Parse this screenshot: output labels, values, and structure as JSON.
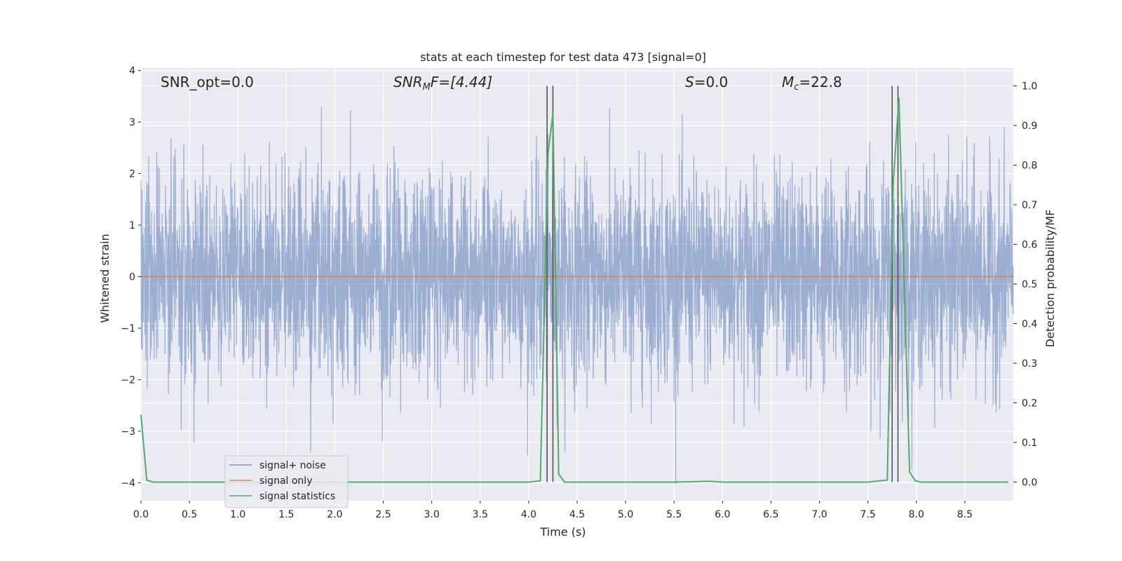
{
  "chart_data": {
    "type": "line",
    "title": "stats at each timestep for test data 473 [signal=0]",
    "xlabel": "Time (s)",
    "ylabel": "Whitened strain",
    "ylabel_right": "Detection probability/MF",
    "xlim": [
      0.0,
      9.0
    ],
    "ylim": [
      -4.35,
      4.05
    ],
    "ylim_right": [
      -0.047,
      1.045
    ],
    "x_ticks": [
      0.0,
      0.5,
      1.0,
      1.5,
      2.0,
      2.5,
      3.0,
      3.5,
      4.0,
      4.5,
      5.0,
      5.5,
      6.0,
      6.5,
      7.0,
      7.5,
      8.0,
      8.5
    ],
    "x_tick_labels": [
      "0.0",
      "0.5",
      "1.0",
      "1.5",
      "2.0",
      "2.5",
      "3.0",
      "3.5",
      "4.0",
      "4.5",
      "5.0",
      "5.5",
      "6.0",
      "6.5",
      "7.0",
      "7.5",
      "8.0",
      "8.5"
    ],
    "y_ticks": [
      4,
      3,
      2,
      1,
      0,
      -1,
      -2,
      -3,
      -4
    ],
    "y_tick_labels": [
      "4",
      "3",
      "2",
      "1",
      "0",
      "−1",
      "−2",
      "−3",
      "−4"
    ],
    "y2_ticks": [
      1.0,
      0.9,
      0.8,
      0.7,
      0.6,
      0.5,
      0.4,
      0.3,
      0.2,
      0.1,
      0.0
    ],
    "y2_tick_labels": [
      "1.0",
      "0.9",
      "0.8",
      "0.7",
      "0.6",
      "0.5",
      "0.4",
      "0.3",
      "0.2",
      "0.1",
      "0.0"
    ],
    "annotations": {
      "snr_opt": "SNR_opt=0.0",
      "snr_mf_prefix": "SNR",
      "snr_mf_sub": "M",
      "snr_mf_suffix": "F=[4.44]",
      "s_prefix": "S",
      "s_suffix": "=0.0",
      "mc_prefix": "M",
      "mc_sub": "c",
      "mc_suffix": "=22.8"
    },
    "legend": {
      "position": "lower-left",
      "entries": [
        "signal+ noise",
        "signal only",
        "signal statistics"
      ]
    },
    "grid": true,
    "background": "#eaeaf2",
    "series": [
      {
        "name": "signal+ noise",
        "kind": "noise",
        "color": "#4c72b0",
        "alpha": 0.5,
        "mean": 0.0,
        "std": 1.0,
        "samples": 4096,
        "x_range": [
          0.0,
          9.0
        ]
      },
      {
        "name": "signal only",
        "kind": "line",
        "color": "#dd8452",
        "x": [
          0.0,
          9.0
        ],
        "y": [
          0.0,
          0.0
        ]
      },
      {
        "name": "signal statistics",
        "kind": "line",
        "axis": "right",
        "color": "#55a868",
        "x": [
          0.0,
          0.06,
          0.12,
          0.5,
          1.0,
          1.5,
          2.0,
          2.5,
          3.0,
          3.5,
          4.0,
          4.12,
          4.2,
          4.25,
          4.31,
          4.37,
          4.5,
          5.0,
          5.5,
          5.86,
          6.0,
          6.5,
          7.0,
          7.5,
          7.7,
          7.76,
          7.82,
          7.93,
          7.99,
          8.05,
          8.5,
          8.95
        ],
        "y": [
          0.17,
          0.005,
          0.0,
          0.0,
          0.0,
          0.0,
          0.0,
          0.0,
          0.0,
          0.0,
          0.0,
          0.003,
          0.83,
          0.93,
          0.02,
          0.0,
          0.0,
          0.0,
          0.0,
          0.002,
          0.0,
          0.0,
          0.0,
          0.0,
          0.005,
          0.75,
          0.97,
          0.025,
          0.003,
          0.0,
          0.0,
          0.0
        ]
      }
    ],
    "vlines": {
      "color": "#555555",
      "x": [
        4.19,
        4.25,
        7.75,
        7.81
      ],
      "y_range_right": [
        0.0,
        1.0
      ]
    }
  }
}
